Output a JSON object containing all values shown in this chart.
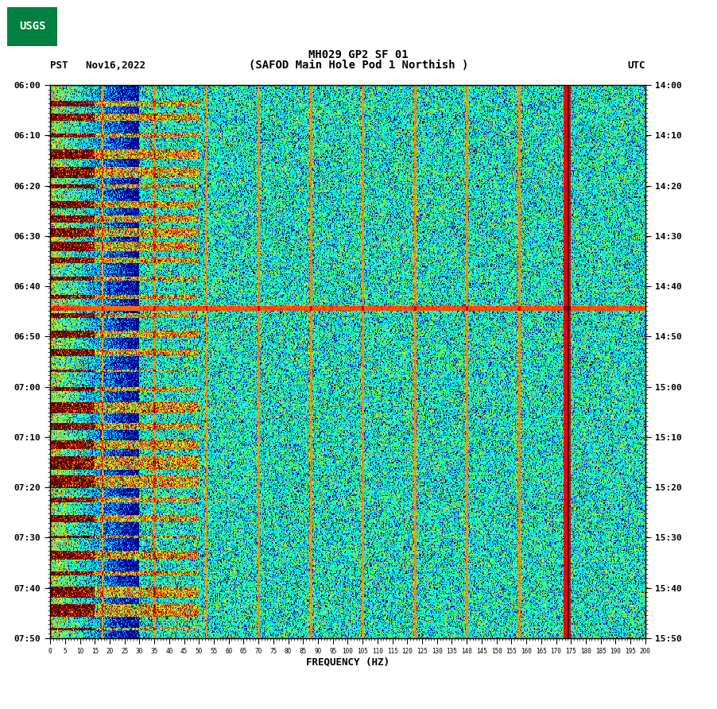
{
  "title_line1": "MH029 GP2 SF 01",
  "title_line2": "(SAFOD Main Hole Pod 1 Northish )",
  "left_label": "PST   Nov16,2022",
  "right_label": "UTC",
  "xlabel": "FREQUENCY (HZ)",
  "freq_min": 0,
  "freq_max": 200,
  "time_start_pst": "06:00",
  "time_end_pst": "07:50",
  "time_start_utc": "14:00",
  "time_end_utc": "15:50",
  "pst_ticks": [
    "06:00",
    "06:10",
    "06:20",
    "06:30",
    "06:40",
    "06:50",
    "07:00",
    "07:10",
    "07:20",
    "07:30",
    "07:40",
    "07:50"
  ],
  "utc_ticks": [
    "14:00",
    "14:10",
    "14:20",
    "14:30",
    "14:40",
    "14:50",
    "15:00",
    "15:10",
    "15:20",
    "15:30",
    "15:40",
    "15:50"
  ],
  "freq_ticks": [
    0,
    5,
    10,
    15,
    20,
    25,
    30,
    35,
    40,
    45,
    50,
    55,
    60,
    65,
    70,
    75,
    80,
    85,
    90,
    95,
    100,
    105,
    110,
    115,
    120,
    125,
    130,
    135,
    140,
    145,
    150,
    155,
    160,
    165,
    170,
    175,
    180,
    185,
    190,
    195,
    200
  ],
  "background_color": "#ffffff",
  "fig_width": 9.02,
  "fig_height": 8.92,
  "dpi": 100
}
